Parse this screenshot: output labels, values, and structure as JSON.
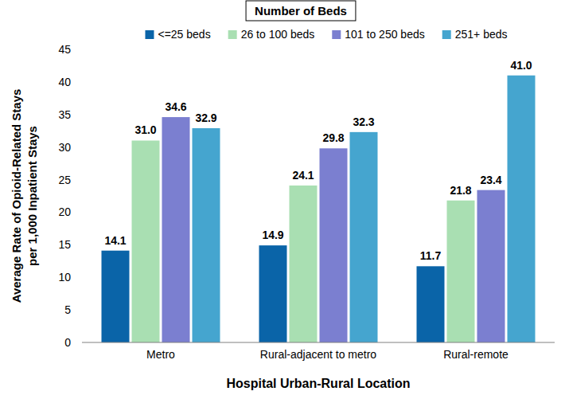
{
  "chart_data": {
    "type": "bar",
    "legend_title": "Number of Beds",
    "x_label": "Hospital Urban-Rural Location",
    "y_label": [
      "Average Rate of Opioid-Related Stays",
      "per 1,000 Inpatient Stays"
    ],
    "categories": [
      "Metro",
      "Rural-adjacent to metro",
      "Rural-remote"
    ],
    "series": [
      {
        "name": "<=25 beds",
        "color": "#0a64a8",
        "values": [
          14.1,
          14.9,
          11.7
        ],
        "value_labels": [
          "14.1",
          "14.9",
          "11.7"
        ]
      },
      {
        "name": "26 to 100 beds",
        "color": "#a9dfb2",
        "values": [
          31.0,
          24.1,
          21.8
        ],
        "value_labels": [
          "31.0",
          "24.1",
          "21.8"
        ]
      },
      {
        "name": "101 to 250 beds",
        "color": "#7b7fd0",
        "values": [
          34.6,
          29.8,
          23.4
        ],
        "value_labels": [
          "34.6",
          "29.8",
          "23.4"
        ]
      },
      {
        "name": "251+ beds",
        "color": "#45a5cf",
        "values": [
          32.9,
          32.3,
          41.0
        ],
        "value_labels": [
          "32.9",
          "32.3",
          "41.0"
        ]
      }
    ],
    "ylim": [
      0,
      45
    ],
    "yticks": [
      0,
      5,
      10,
      15,
      20,
      25,
      30,
      35,
      40,
      45
    ],
    "data_labels": true,
    "legend": "top",
    "grid": false
  }
}
